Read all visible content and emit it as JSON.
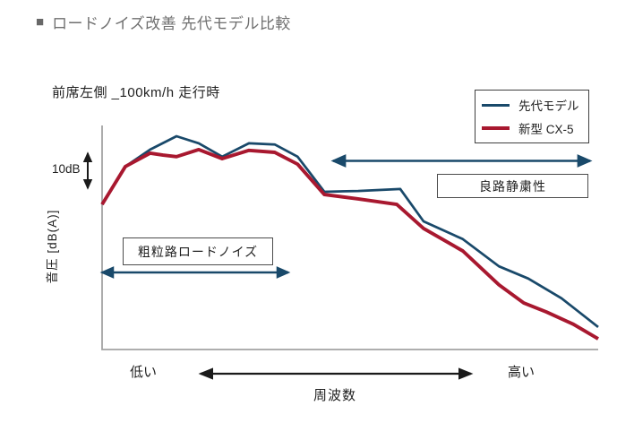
{
  "page": {
    "title_marker": "■"
  },
  "chart_data": {
    "type": "line",
    "title": "ロードノイズ改善 先代モデル比較",
    "subtitle": "前席左側 _100km/h 走行時",
    "xlabel": "周波数",
    "ylabel": "音圧 [dB(A)]",
    "x_axis": {
      "type": "qualitative",
      "left_label": "低い",
      "right_label": "高い"
    },
    "y_axis": {
      "type": "qualitative",
      "scale_marker": "10dB"
    },
    "grid": false,
    "legend_position": "top-right",
    "points_format": "[relative frequency position 0-1, relative sound pressure dB(A); 10dB = one scale-arrow interval]",
    "series": [
      {
        "name": "先代モデル",
        "color": "#19496a",
        "points": [
          [
            0,
            36.8
          ],
          [
            0.047,
            46.4
          ],
          [
            0.097,
            50.7
          ],
          [
            0.15,
            54.1
          ],
          [
            0.195,
            52.3
          ],
          [
            0.242,
            48.9
          ],
          [
            0.296,
            52.3
          ],
          [
            0.348,
            52.0
          ],
          [
            0.394,
            48.9
          ],
          [
            0.448,
            40.0
          ],
          [
            0.516,
            40.2
          ],
          [
            0.601,
            40.7
          ],
          [
            0.648,
            32.5
          ],
          [
            0.727,
            28.0
          ],
          [
            0.8,
            21.1
          ],
          [
            0.859,
            18.0
          ],
          [
            0.926,
            13.0
          ],
          [
            1,
            5.7
          ]
        ]
      },
      {
        "name": "新型 CX-5",
        "color": "#a8182f",
        "points": [
          [
            0,
            36.8
          ],
          [
            0.047,
            46.4
          ],
          [
            0.097,
            49.8
          ],
          [
            0.123,
            49.3
          ],
          [
            0.15,
            48.9
          ],
          [
            0.195,
            50.7
          ],
          [
            0.242,
            48.4
          ],
          [
            0.296,
            50.5
          ],
          [
            0.348,
            50.0
          ],
          [
            0.394,
            47.0
          ],
          [
            0.448,
            39.3
          ],
          [
            0.516,
            38.2
          ],
          [
            0.594,
            36.8
          ],
          [
            0.648,
            30.7
          ],
          [
            0.727,
            25.0
          ],
          [
            0.8,
            16.4
          ],
          [
            0.85,
            11.8
          ],
          [
            0.896,
            9.5
          ],
          [
            0.95,
            6.4
          ],
          [
            1,
            2.7
          ]
        ]
      }
    ],
    "annotations": [
      {
        "label": "粗粒路ロードノイズ",
        "x_range": [
          0,
          0.38
        ]
      },
      {
        "label": "良路静粛性",
        "x_range": [
          0.465,
          0.985
        ]
      }
    ]
  }
}
